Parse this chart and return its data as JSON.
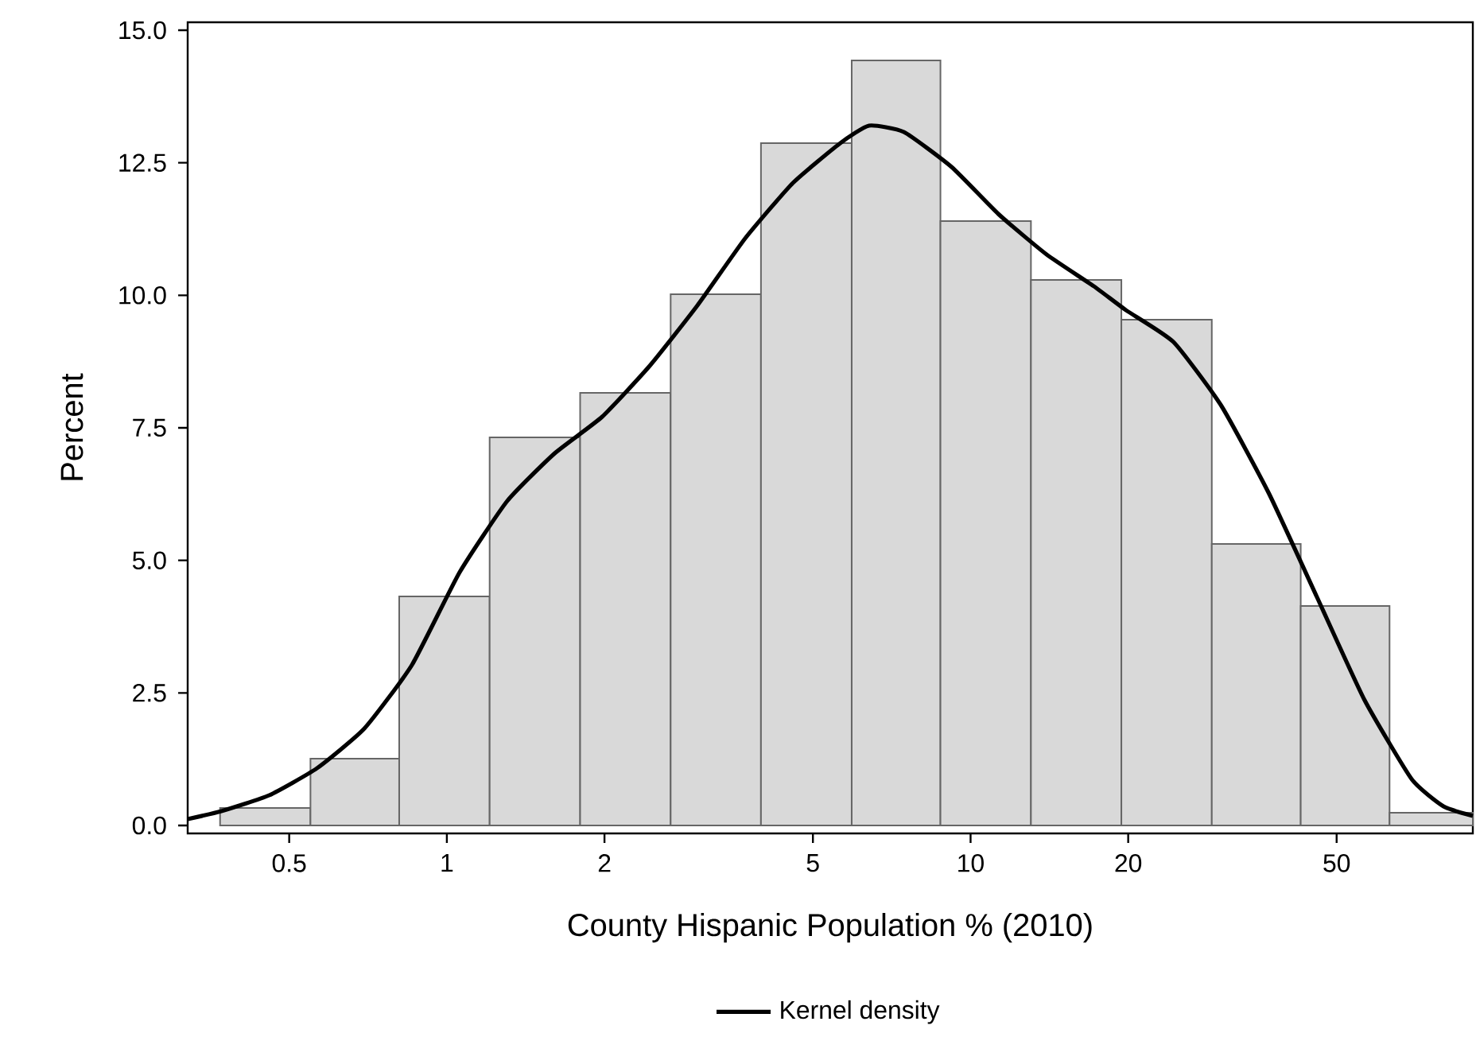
{
  "chart_data": {
    "type": "histogram",
    "xlabel": "County Hispanic Population % (2010)",
    "ylabel": "Percent",
    "log": "x",
    "legend": "bottom",
    "xlim": [
      0.32,
      91
    ],
    "ylim": [
      -0.15,
      15.15
    ],
    "xticks": [
      0.5,
      1,
      2,
      5,
      10,
      20,
      50
    ],
    "yticks": [
      {
        "value": 0,
        "label": "0.0"
      },
      {
        "value": 2.5,
        "label": "2.5"
      },
      {
        "value": 5,
        "label": "5.0"
      },
      {
        "value": 7.5,
        "label": "7.5"
      },
      {
        "value": 10,
        "label": "10.0"
      },
      {
        "value": 12.5,
        "label": "12.5"
      },
      {
        "value": 15,
        "label": "15.0"
      }
    ],
    "series": [
      {
        "color": "#d9d9d9",
        "bins": [
          0.369,
          0.549,
          0.811,
          1.207,
          1.797,
          2.675,
          3.98,
          5.93,
          8.76,
          13.04,
          19.41,
          28.88,
          42.7,
          63.1,
          91
        ],
        "values": [
          0.33,
          1.26,
          4.32,
          7.32,
          8.16,
          10.02,
          12.87,
          14.43,
          11.4,
          10.29,
          9.54,
          5.31,
          4.14,
          0.24
        ]
      },
      {
        "type": "line",
        "name": "Kernel density",
        "color": "#000000",
        "x": [
          0.32,
          0.371,
          0.458,
          0.565,
          0.696,
          0.858,
          1.057,
          1.304,
          1.607,
          1.98,
          2.44,
          3.01,
          3.71,
          4.58,
          5.64,
          6.4,
          7.46,
          9.2,
          11.34,
          13.97,
          17.2,
          19.8,
          24.4,
          30.1,
          37.1,
          45.8,
          56.5,
          69.6,
          80.0,
          91
        ],
        "values": [
          0.12,
          0.27,
          0.57,
          1.08,
          1.83,
          3.03,
          4.77,
          6.12,
          7.02,
          7.71,
          8.67,
          9.81,
          11.07,
          12.12,
          12.87,
          13.2,
          13.08,
          12.42,
          11.52,
          10.77,
          10.17,
          9.72,
          9.12,
          7.92,
          6.27,
          4.32,
          2.37,
          0.87,
          0.36,
          0.18
        ]
      }
    ]
  }
}
